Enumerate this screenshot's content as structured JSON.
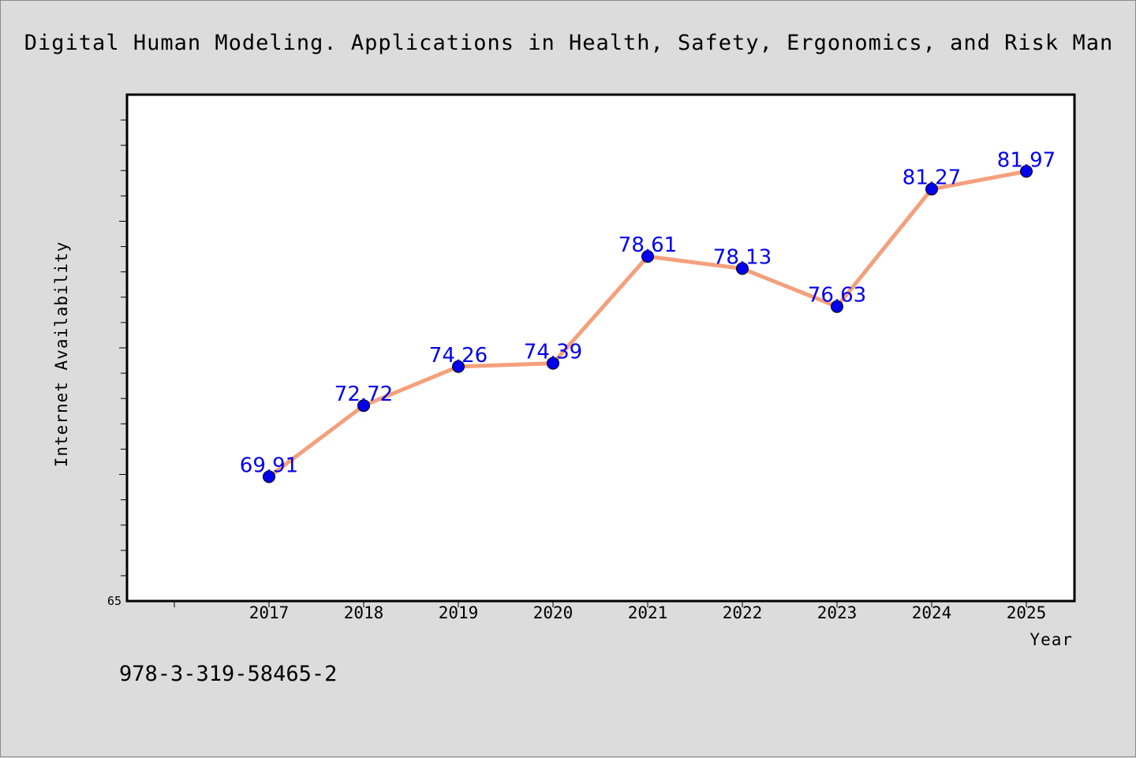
{
  "chart_data": {
    "type": "line",
    "title": "Digital Human Modeling. Applications in Health, Safety, Ergonomics, and Risk Man",
    "xlabel": "Year",
    "ylabel": "Internet Availability",
    "categories": [
      "2017",
      "2018",
      "2019",
      "2020",
      "2021",
      "2022",
      "2023",
      "2024",
      "2025"
    ],
    "values": [
      69.91,
      72.72,
      74.26,
      74.39,
      78.61,
      78.13,
      76.63,
      81.27,
      81.97
    ],
    "data_labels": [
      "69.91",
      "72.72",
      "74.26",
      "74.39",
      "78.61",
      "78.13",
      "76.63",
      "81.27",
      "81.97"
    ],
    "ylim": [
      65,
      85
    ],
    "y_tick_labels": [
      "65"
    ],
    "grid": false,
    "line_color": "#f4a07c",
    "marker_color": "#0000ee",
    "label_color": "#0000ee"
  },
  "footnote": "978-3-319-58465-2"
}
